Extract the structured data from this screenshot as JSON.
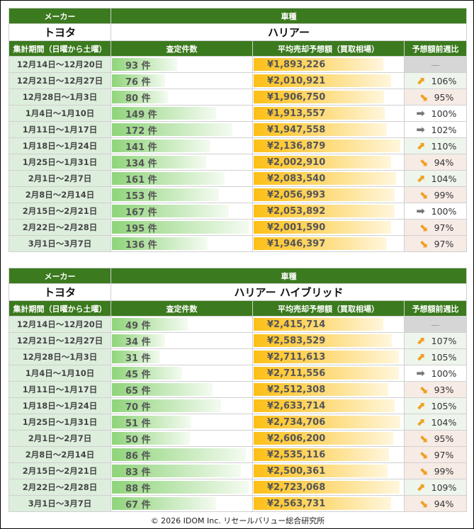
{
  "headers": {
    "maker": "メーカー",
    "model": "車種",
    "period": "集計期間（日曜から土曜）",
    "count": "査定件数",
    "price": "平均売却予想額（買取相場）",
    "ratio": "予想額前週比"
  },
  "tables": [
    {
      "maker": "トヨタ",
      "model": "ハリアー",
      "rows": [
        {
          "period": "12月14日〜12月20日",
          "count": 93,
          "count_label": "93 件",
          "price": 1893226,
          "price_label": "¥1,893,226",
          "ratio": "—",
          "trend": "none"
        },
        {
          "period": "12月21日〜12月27日",
          "count": 76,
          "count_label": "76 件",
          "price": 2010921,
          "price_label": "¥2,010,921",
          "ratio": "106%",
          "trend": "up"
        },
        {
          "period": "12月28日〜1月3日",
          "count": 80,
          "count_label": "80 件",
          "price": 1906750,
          "price_label": "¥1,906,750",
          "ratio": "95%",
          "trend": "down"
        },
        {
          "period": "1月4日〜1月10日",
          "count": 149,
          "count_label": "149 件",
          "price": 1913557,
          "price_label": "¥1,913,557",
          "ratio": "100%",
          "trend": "flat"
        },
        {
          "period": "1月11日〜1月17日",
          "count": 172,
          "count_label": "172 件",
          "price": 1947558,
          "price_label": "¥1,947,558",
          "ratio": "102%",
          "trend": "flat"
        },
        {
          "period": "1月18日〜1月24日",
          "count": 141,
          "count_label": "141 件",
          "price": 2136879,
          "price_label": "¥2,136,879",
          "ratio": "110%",
          "trend": "up"
        },
        {
          "period": "1月25日〜1月31日",
          "count": 134,
          "count_label": "134 件",
          "price": 2002910,
          "price_label": "¥2,002,910",
          "ratio": "94%",
          "trend": "down"
        },
        {
          "period": "2月1日〜2月7日",
          "count": 161,
          "count_label": "161 件",
          "price": 2083540,
          "price_label": "¥2,083,540",
          "ratio": "104%",
          "trend": "up"
        },
        {
          "period": "2月8日〜2月14日",
          "count": 153,
          "count_label": "153 件",
          "price": 2056993,
          "price_label": "¥2,056,993",
          "ratio": "99%",
          "trend": "down"
        },
        {
          "period": "2月15日〜2月21日",
          "count": 167,
          "count_label": "167 件",
          "price": 2053892,
          "price_label": "¥2,053,892",
          "ratio": "100%",
          "trend": "flat"
        },
        {
          "period": "2月22日〜2月28日",
          "count": 195,
          "count_label": "195 件",
          "price": 2001590,
          "price_label": "¥2,001,590",
          "ratio": "97%",
          "trend": "down"
        },
        {
          "period": "3月1日〜3月7日",
          "count": 136,
          "count_label": "136 件",
          "price": 1946397,
          "price_label": "¥1,946,397",
          "ratio": "97%",
          "trend": "down"
        }
      ]
    },
    {
      "maker": "トヨタ",
      "model": "ハリアー ハイブリッド",
      "rows": [
        {
          "period": "12月14日〜12月20日",
          "count": 49,
          "count_label": "49 件",
          "price": 2415714,
          "price_label": "¥2,415,714",
          "ratio": "—",
          "trend": "none"
        },
        {
          "period": "12月21日〜12月27日",
          "count": 34,
          "count_label": "34 件",
          "price": 2583529,
          "price_label": "¥2,583,529",
          "ratio": "107%",
          "trend": "up"
        },
        {
          "period": "12月28日〜1月3日",
          "count": 31,
          "count_label": "31 件",
          "price": 2711613,
          "price_label": "¥2,711,613",
          "ratio": "105%",
          "trend": "up"
        },
        {
          "period": "1月4日〜1月10日",
          "count": 45,
          "count_label": "45 件",
          "price": 2711556,
          "price_label": "¥2,711,556",
          "ratio": "100%",
          "trend": "flat"
        },
        {
          "period": "1月11日〜1月17日",
          "count": 65,
          "count_label": "65 件",
          "price": 2512308,
          "price_label": "¥2,512,308",
          "ratio": "93%",
          "trend": "down"
        },
        {
          "period": "1月18日〜1月24日",
          "count": 70,
          "count_label": "70 件",
          "price": 2633714,
          "price_label": "¥2,633,714",
          "ratio": "105%",
          "trend": "up"
        },
        {
          "period": "1月25日〜1月31日",
          "count": 51,
          "count_label": "51 件",
          "price": 2734706,
          "price_label": "¥2,734,706",
          "ratio": "104%",
          "trend": "up"
        },
        {
          "period": "2月1日〜2月7日",
          "count": 50,
          "count_label": "50 件",
          "price": 2606200,
          "price_label": "¥2,606,200",
          "ratio": "95%",
          "trend": "down"
        },
        {
          "period": "2月8日〜2月14日",
          "count": 86,
          "count_label": "86 件",
          "price": 2535116,
          "price_label": "¥2,535,116",
          "ratio": "97%",
          "trend": "down"
        },
        {
          "period": "2月15日〜2月21日",
          "count": 83,
          "count_label": "83 件",
          "price": 2500361,
          "price_label": "¥2,500,361",
          "ratio": "99%",
          "trend": "down"
        },
        {
          "period": "2月22日〜2月28日",
          "count": 88,
          "count_label": "88 件",
          "price": 2723068,
          "price_label": "¥2,723,068",
          "ratio": "109%",
          "trend": "up"
        },
        {
          "period": "3月1日〜3月7日",
          "count": 67,
          "count_label": "67 件",
          "price": 2563731,
          "price_label": "¥2,563,731",
          "ratio": "94%",
          "trend": "down"
        }
      ]
    }
  ],
  "footer": "© 2026 IDOM Inc. リセールバリュー総合研究所"
}
